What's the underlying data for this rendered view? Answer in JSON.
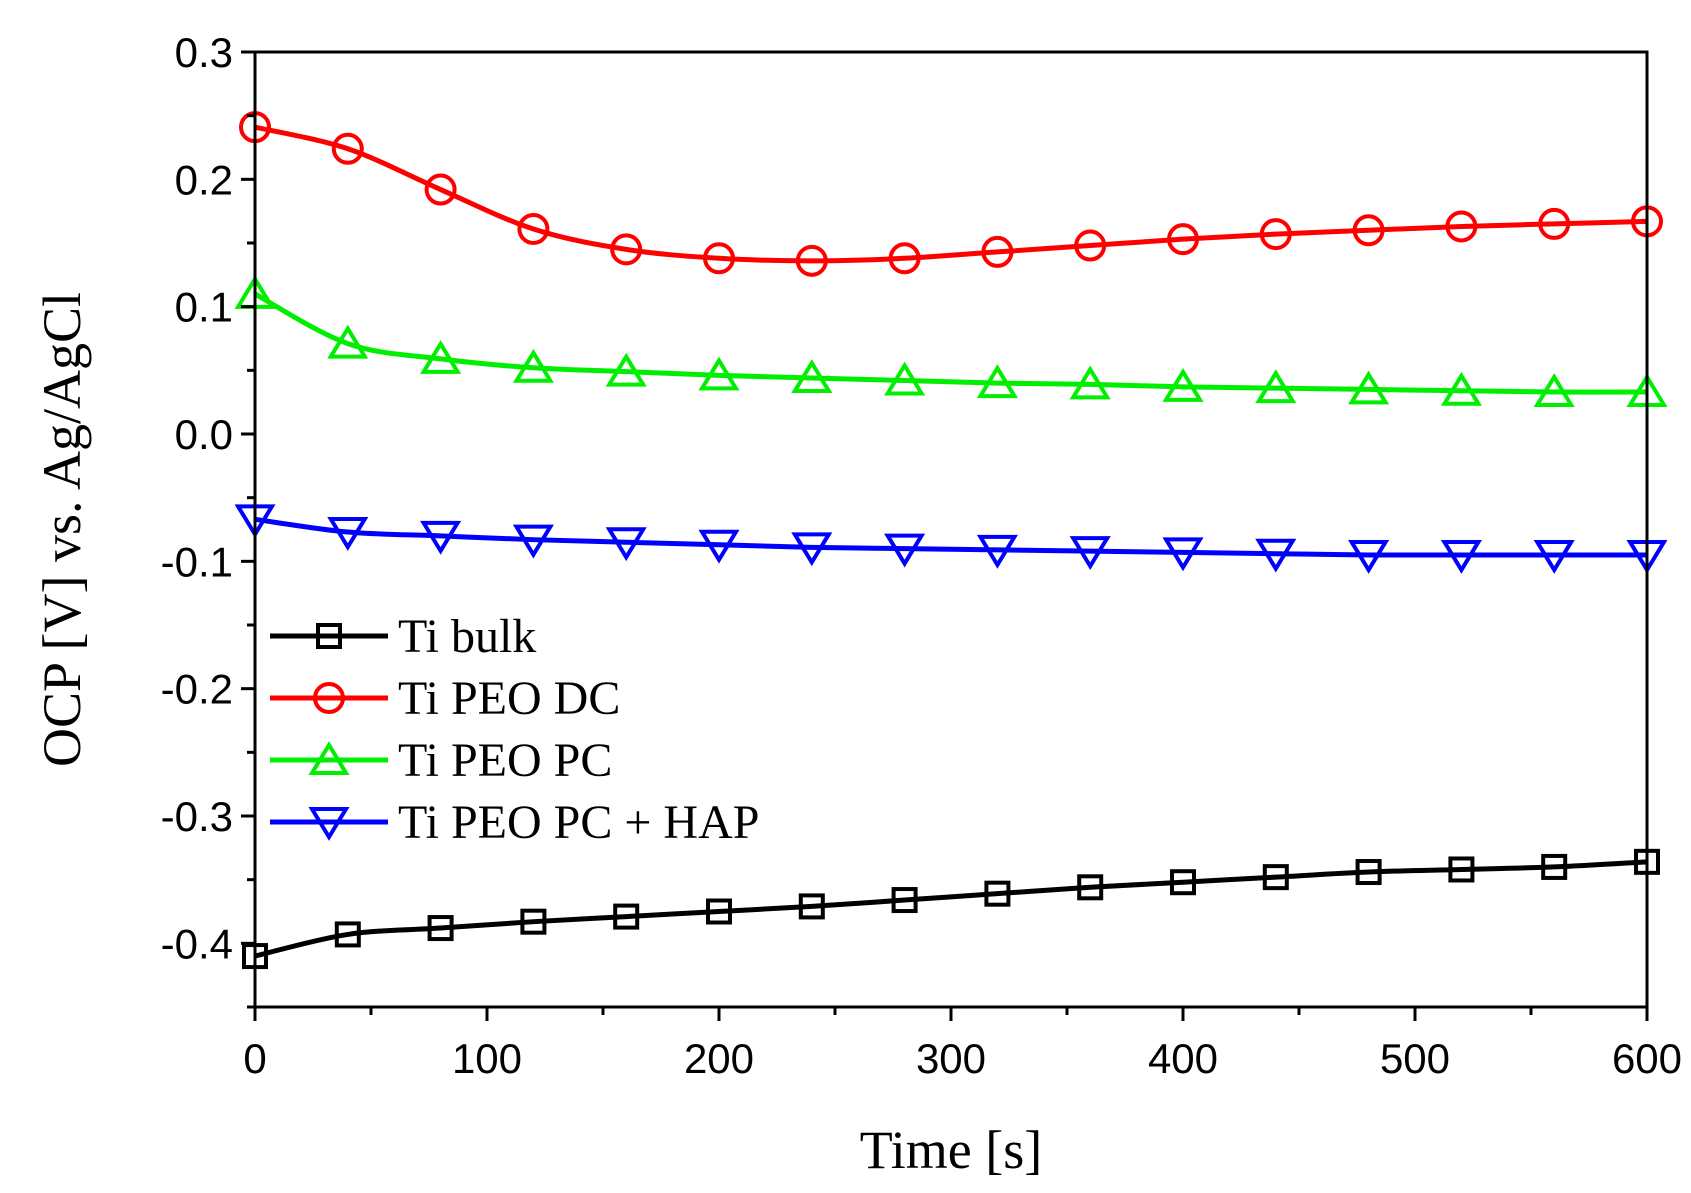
{
  "chart_data": {
    "type": "line",
    "title": "",
    "xlabel": "Time [s]",
    "ylabel": "OCP [V] vs. Ag/AgCl",
    "xlim": [
      0,
      600
    ],
    "ylim": [
      -0.45,
      0.3
    ],
    "x_ticks": [
      0,
      100,
      200,
      300,
      400,
      500,
      600
    ],
    "x_tick_labels": [
      "0",
      "100",
      "200",
      "300",
      "400",
      "500",
      "600"
    ],
    "y_ticks": [
      0.3,
      0.2,
      0.1,
      0.0,
      -0.1,
      -0.2,
      -0.3,
      -0.4
    ],
    "y_tick_labels": [
      "0.3",
      "0.2",
      "0.1",
      "0.0",
      "-0.1",
      "-0.2",
      "-0.3",
      "-0.4"
    ],
    "grid": false,
    "legend_position": "middle-left",
    "x": [
      0,
      40,
      80,
      120,
      160,
      200,
      240,
      280,
      320,
      360,
      400,
      440,
      480,
      520,
      560,
      600
    ],
    "series": [
      {
        "name": "Ti bulk",
        "color": "#000000",
        "marker": "square",
        "values": [
          -0.41,
          -0.393,
          -0.388,
          -0.383,
          -0.379,
          -0.375,
          -0.371,
          -0.366,
          -0.361,
          -0.356,
          -0.352,
          -0.348,
          -0.344,
          -0.342,
          -0.34,
          -0.336
        ]
      },
      {
        "name": "Ti PEO DC",
        "color": "#ff0000",
        "marker": "circle",
        "values": [
          0.241,
          0.224,
          0.192,
          0.161,
          0.145,
          0.138,
          0.136,
          0.138,
          0.143,
          0.148,
          0.153,
          0.157,
          0.16,
          0.163,
          0.165,
          0.167
        ]
      },
      {
        "name": "Ti PEO PC",
        "color": "#00ee00",
        "marker": "triangle-up",
        "values": [
          0.11,
          0.071,
          0.059,
          0.052,
          0.049,
          0.046,
          0.044,
          0.042,
          0.04,
          0.039,
          0.037,
          0.036,
          0.035,
          0.034,
          0.033,
          0.033
        ]
      },
      {
        "name": "Ti PEO PC + HAP",
        "color": "#0000ff",
        "marker": "triangle-down",
        "values": [
          -0.067,
          -0.077,
          -0.08,
          -0.083,
          -0.085,
          -0.087,
          -0.089,
          -0.09,
          -0.091,
          -0.092,
          -0.093,
          -0.094,
          -0.095,
          -0.095,
          -0.095,
          -0.095
        ]
      }
    ]
  }
}
